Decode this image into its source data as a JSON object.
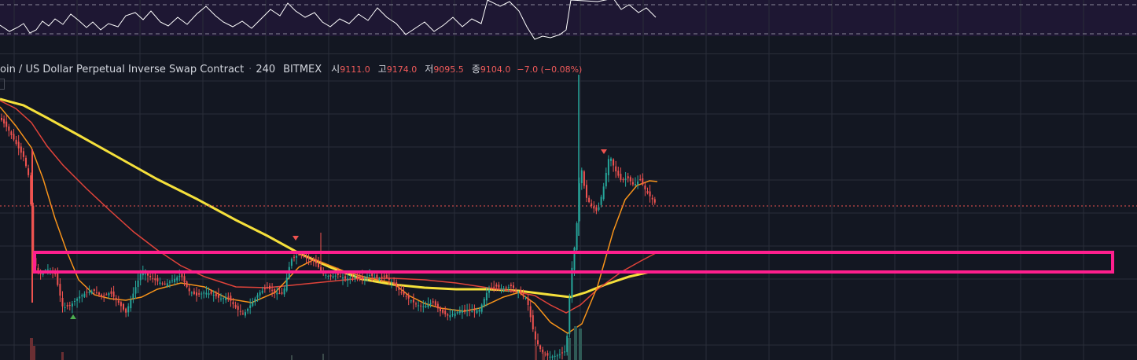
{
  "legend": {
    "symbol": "oin / US Dollar Perpetual Inverse Swap Contract",
    "separator": "·",
    "timeframe": "240",
    "exchange": "BITMEX",
    "open_label": "시",
    "open": "9111.0",
    "high_label": "고",
    "high": "9174.0",
    "low_label": "저",
    "low": "9095.5",
    "close_label": "종",
    "close": "9104.0",
    "change": "−7.0 (−0.08%)"
  },
  "colors": {
    "background": "#131722",
    "grid": "#2a2e39",
    "indicator_bg": "#1e1733",
    "bull": "#26a69a",
    "bear": "#ef5350",
    "ma_fast": "#f7931a",
    "ma_mid": "#e0433a",
    "ma_slow": "#f5e03b",
    "highlight_box": "#ff1f8e",
    "price_line": "#ef5350"
  },
  "indicator": {
    "name": "oscillator",
    "line_color": "#ffffff",
    "dashed_levels": true
  },
  "signals": [
    {
      "type": "sell-arrow",
      "color": "#ef5350"
    },
    {
      "type": "sell-arrow",
      "color": "#ef5350"
    },
    {
      "type": "buy-arrow",
      "color": "#4caf50"
    }
  ],
  "annotations": [
    {
      "type": "rectangle-highlight",
      "color": "#ff1f8e"
    }
  ]
}
